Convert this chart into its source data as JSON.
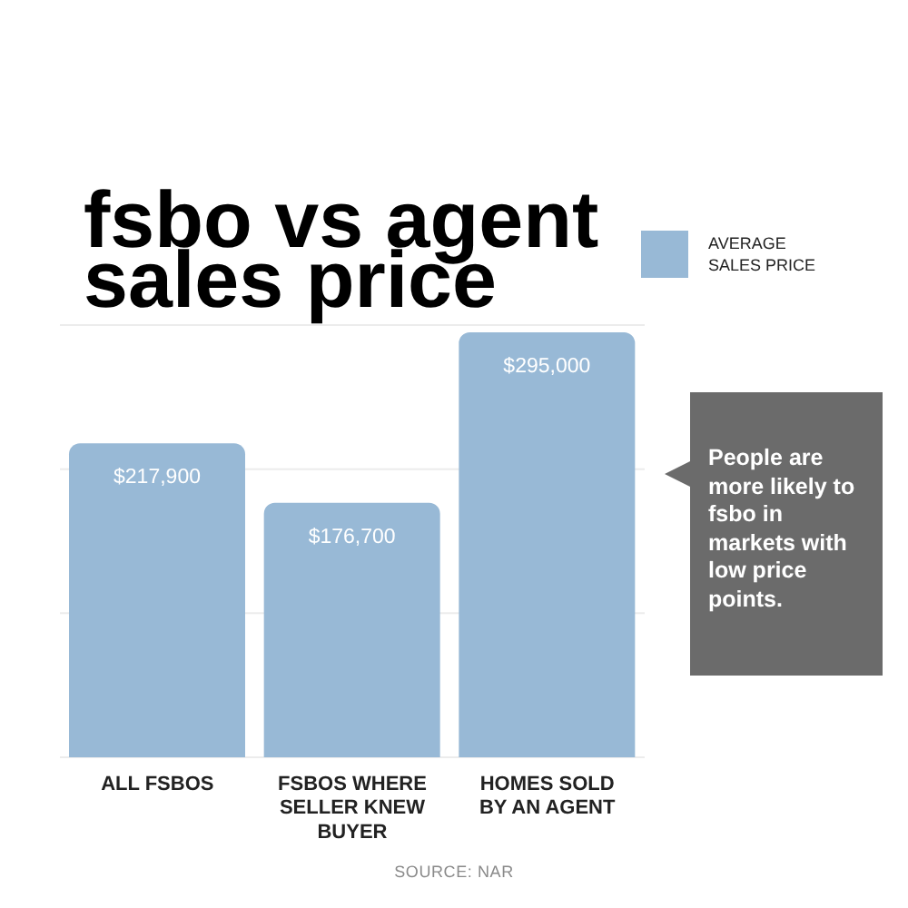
{
  "chart_data": {
    "type": "bar",
    "title": "fsbo vs agent sales price",
    "categories": [
      "ALL FSBOS",
      "FSBOS WHERE SELLER KNEW BUYER",
      "HOMES SOLD BY AN AGENT"
    ],
    "series": [
      {
        "name": "AVERAGE SALES PRICE",
        "color": "#98b9d6",
        "values": [
          217900,
          176700,
          295000
        ],
        "value_labels": [
          "$217,900",
          "$176,700",
          "$295,000"
        ]
      }
    ],
    "ylim": [
      0,
      300000
    ],
    "yticks": [
      {
        "value": 100000,
        "label": null
      },
      {
        "value": 200000,
        "label": null
      },
      {
        "value": 300000,
        "label": null
      }
    ],
    "grid": "y",
    "legend": "top right",
    "tick_labels": "x",
    "annotations": [
      "People are more likely to fsbo in markets with low price points.",
      "SOURCE: NAR"
    ]
  }
}
